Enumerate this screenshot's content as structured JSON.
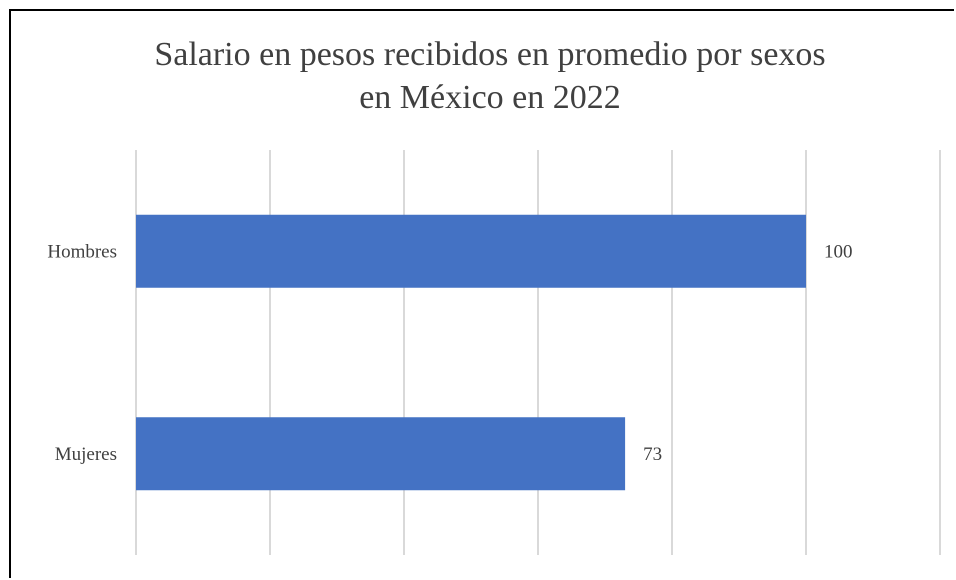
{
  "chart_data": {
    "type": "bar",
    "orientation": "horizontal",
    "title_lines": [
      "Salario en pesos recibidos en promedio por sexos",
      "en México en 2022"
    ],
    "categories": [
      "Hombres",
      "Mujeres"
    ],
    "values": [
      100,
      73
    ],
    "xlim": [
      0,
      120
    ],
    "grid": true,
    "data_labels": true,
    "xlabel": "",
    "ylabel": "",
    "bar_color": "#4472C4",
    "gridline_color": "#D9D9D9"
  }
}
